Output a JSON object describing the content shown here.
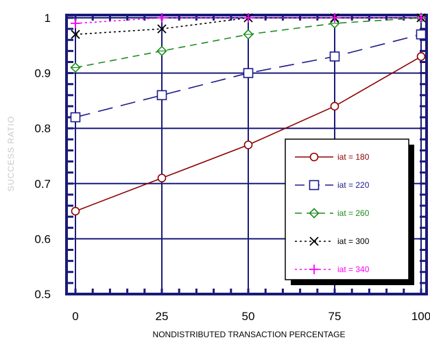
{
  "chart_data": {
    "type": "line",
    "title": "",
    "xlabel": "NONDISTRIBUTED TRANSACTION PERCENTAGE",
    "ylabel": "SUCCESS RATIO",
    "xlim": [
      0,
      100
    ],
    "ylim": [
      0.5,
      1.0
    ],
    "x_ticks": [
      "0",
      "25",
      "50",
      "75",
      "100"
    ],
    "y_ticks": [
      "0.5",
      "0.6",
      "0.7",
      "0.8",
      "0.9",
      "1"
    ],
    "grid": true,
    "legend_position": "bottom-right",
    "x": [
      0,
      25,
      50,
      75,
      100
    ],
    "series": [
      {
        "name": "iat = 180",
        "values": [
          0.65,
          0.71,
          0.77,
          0.84,
          0.93
        ],
        "color": "#8b0000",
        "marker": "circle",
        "dash": "solid"
      },
      {
        "name": "iat = 220",
        "values": [
          0.82,
          0.86,
          0.9,
          0.93,
          0.97
        ],
        "color": "#1a1a8c",
        "marker": "square",
        "dash": "long-dash"
      },
      {
        "name": "iat = 260",
        "values": [
          0.91,
          0.94,
          0.97,
          0.99,
          1.0
        ],
        "color": "#1e8c1e",
        "marker": "diamond",
        "dash": "dash"
      },
      {
        "name": "iat = 300",
        "values": [
          0.97,
          0.98,
          1.0,
          1.0,
          1.0
        ],
        "color": "#000000",
        "marker": "x",
        "dash": "dot"
      },
      {
        "name": "iat = 340",
        "values": [
          0.99,
          1.0,
          1.0,
          1.0,
          1.0
        ],
        "color": "#ff00ff",
        "marker": "plus",
        "dash": "dot"
      }
    ]
  },
  "colors": {
    "frame": "#1a1a7a",
    "grid": "#1a1a7a",
    "ylabel": "#c8c8c8"
  }
}
